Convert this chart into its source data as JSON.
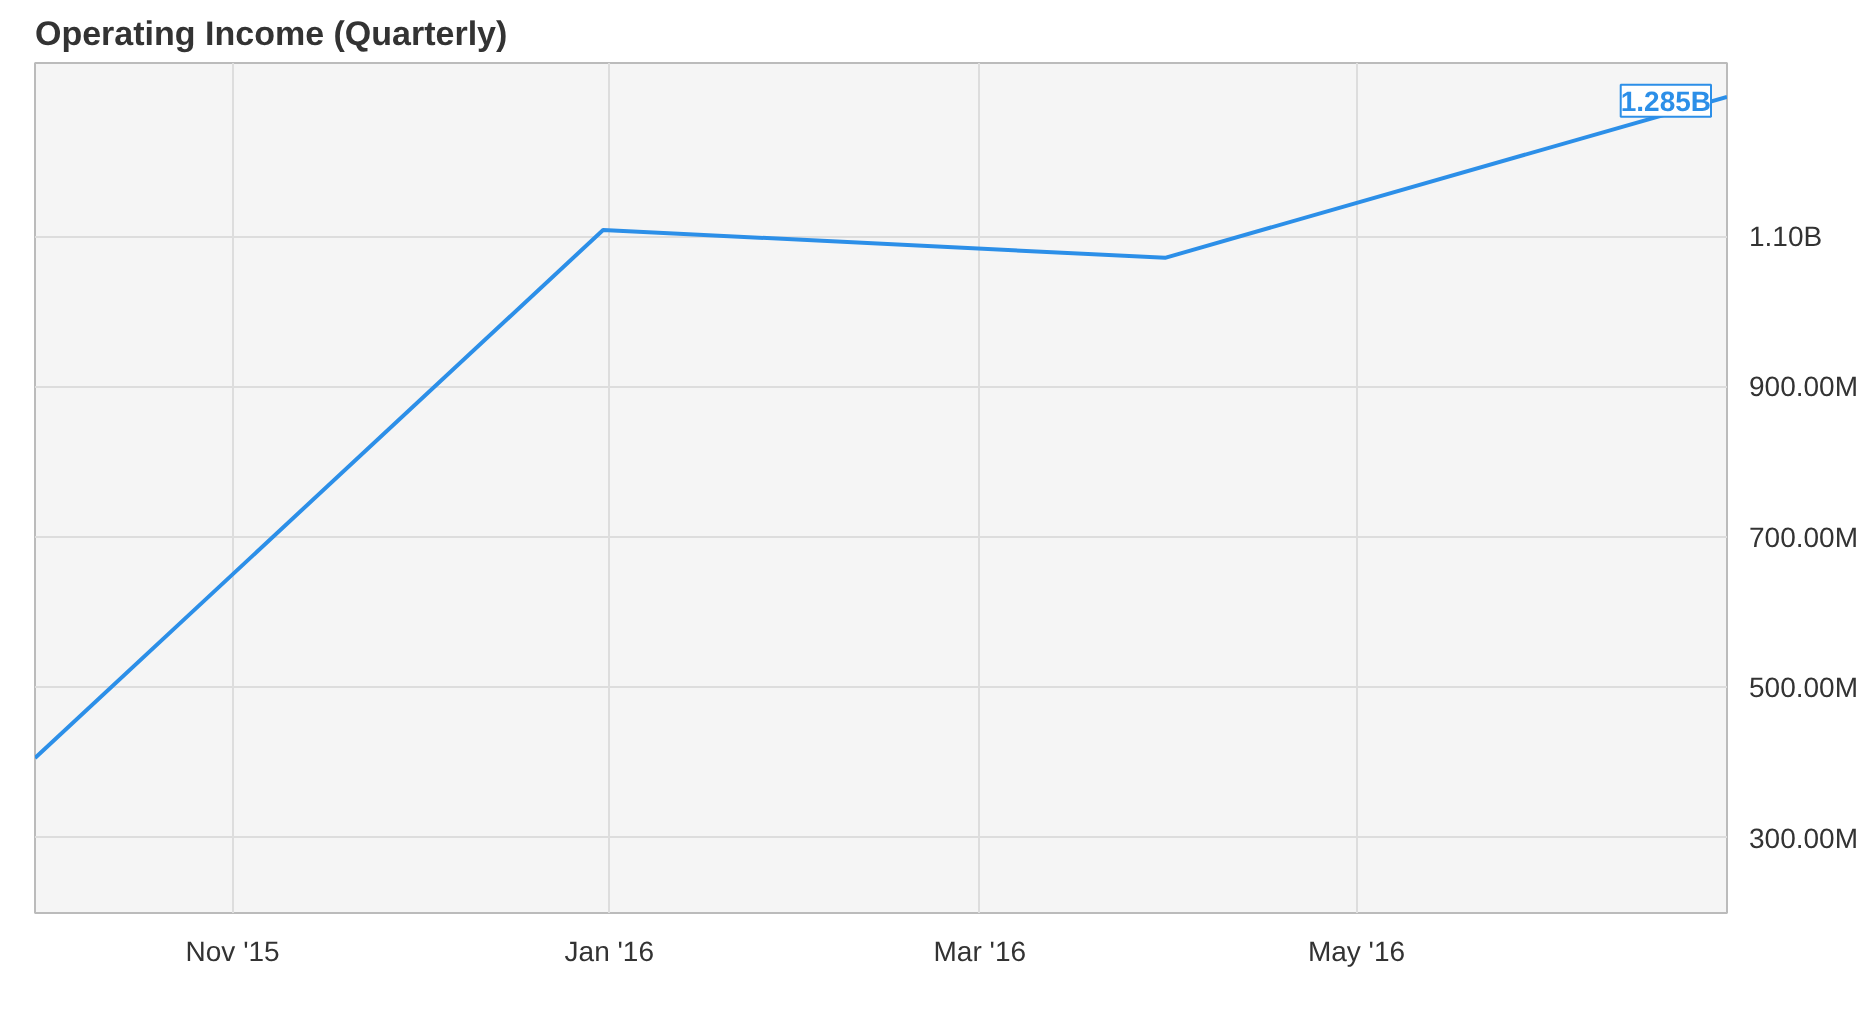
{
  "chart_data": {
    "type": "line",
    "title": "Operating Income (Quarterly)",
    "x": [
      "2015-09-30",
      "2015-12-31",
      "2016-03-31",
      "2016-06-30"
    ],
    "series": [
      {
        "color": "#2c8fe8",
        "values": [
          406000000,
          1108000000,
          1071000000,
          1285000000
        ],
        "value_labels": [
          null,
          null,
          null,
          "1.285B"
        ]
      }
    ],
    "xlim": [
      "2015-09-30",
      "2016-06-30"
    ],
    "xticks": [
      {
        "value": "2015-11-01",
        "label": "Nov '15"
      },
      {
        "value": "2016-01-01",
        "label": "Jan '16"
      },
      {
        "value": "2016-03-01",
        "label": "Mar '16"
      },
      {
        "value": "2016-05-01",
        "label": "May '16"
      }
    ],
    "ylim": [
      200000000,
      1330000000
    ],
    "yticks": [
      {
        "value": 300000000,
        "label": "300.00M"
      },
      {
        "value": 500000000,
        "label": "500.00M"
      },
      {
        "value": 700000000,
        "label": "700.00M"
      },
      {
        "value": 900000000,
        "label": "900.00M"
      },
      {
        "value": 1100000000,
        "label": "1.10B"
      }
    ],
    "grid": true,
    "marker": "none",
    "line_style": "solid"
  }
}
